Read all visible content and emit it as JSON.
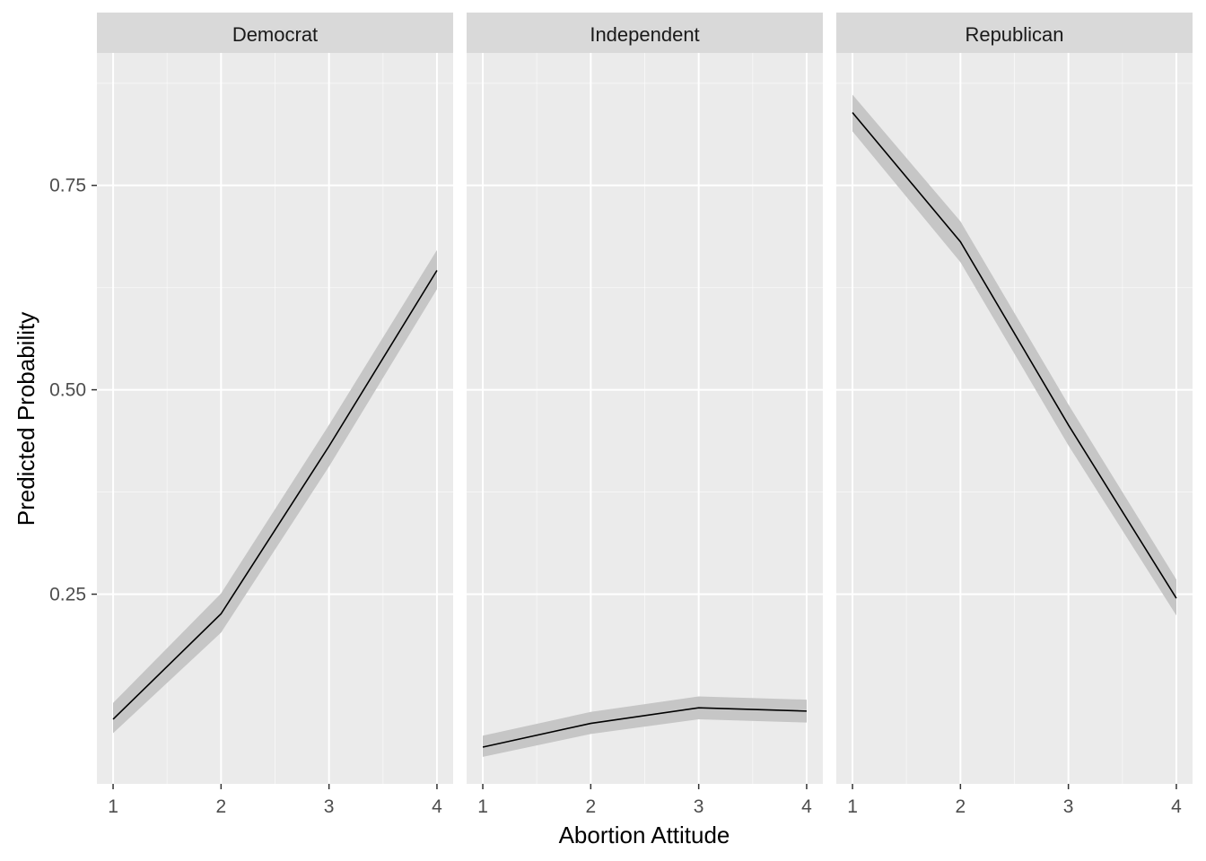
{
  "chart_data": {
    "type": "line",
    "facets": [
      "Democrat",
      "Independent",
      "Republican"
    ],
    "xlabel": "Abortion Attitude",
    "ylabel": "Predicted Probability",
    "x_ticks": [
      1,
      2,
      3,
      4
    ],
    "y_ticks": [
      0.25,
      0.5,
      0.75
    ],
    "y_tick_labels": [
      "0.25",
      "0.50",
      "0.75"
    ],
    "xlim": [
      0.85,
      4.15
    ],
    "ylim": [
      0.018,
      0.912
    ],
    "grid": true,
    "colors": {
      "panel": "#EBEBEB",
      "strip": "#D9D9D9",
      "grid_major": "#FFFFFF",
      "ribbon": "#C6C6C6",
      "line": "#000000",
      "axis_text": "#4D4D4D",
      "axis_title": "#000000",
      "strip_text": "#1A1A1A"
    },
    "series": [
      {
        "facet": "Democrat",
        "x": [
          1,
          2,
          3,
          4
        ],
        "y": [
          0.097,
          0.226,
          0.431,
          0.646
        ],
        "lower": [
          0.08,
          0.203,
          0.406,
          0.623
        ],
        "upper": [
          0.117,
          0.251,
          0.457,
          0.671
        ]
      },
      {
        "facet": "Independent",
        "x": [
          1,
          2,
          3,
          4
        ],
        "y": [
          0.063,
          0.092,
          0.111,
          0.107
        ],
        "lower": [
          0.051,
          0.079,
          0.097,
          0.093
        ],
        "upper": [
          0.077,
          0.106,
          0.125,
          0.121
        ]
      },
      {
        "facet": "Republican",
        "x": [
          1,
          2,
          3,
          4
        ],
        "y": [
          0.839,
          0.681,
          0.457,
          0.245
        ],
        "lower": [
          0.816,
          0.656,
          0.432,
          0.224
        ],
        "upper": [
          0.861,
          0.706,
          0.482,
          0.268
        ]
      }
    ]
  }
}
